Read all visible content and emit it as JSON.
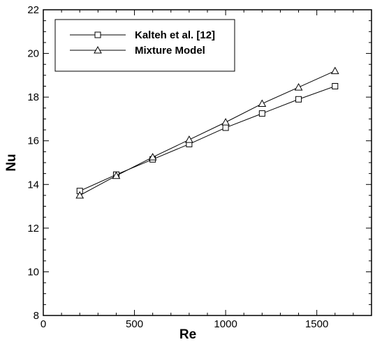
{
  "chart_data": {
    "type": "line",
    "title": "",
    "xlabel": "Re",
    "ylabel": "Nu",
    "xlim": [
      0,
      1800
    ],
    "ylim": [
      8,
      22
    ],
    "xticks": [
      0,
      500,
      1000,
      1500
    ],
    "yticks": [
      8,
      10,
      12,
      14,
      16,
      18,
      20,
      22
    ],
    "legend_position": "top-left",
    "grid": false,
    "series": [
      {
        "name": "Kalteh et al. [12]",
        "marker": "square",
        "x": [
          200,
          400,
          600,
          800,
          1000,
          1200,
          1400,
          1600
        ],
        "y": [
          13.7,
          14.45,
          15.15,
          15.85,
          16.6,
          17.25,
          17.9,
          18.5
        ]
      },
      {
        "name": "Mixture Model",
        "marker": "triangle",
        "x": [
          200,
          400,
          600,
          800,
          1000,
          1200,
          1400,
          1600
        ],
        "y": [
          13.5,
          14.4,
          15.25,
          16.05,
          16.85,
          17.7,
          18.45,
          19.2
        ]
      }
    ]
  }
}
